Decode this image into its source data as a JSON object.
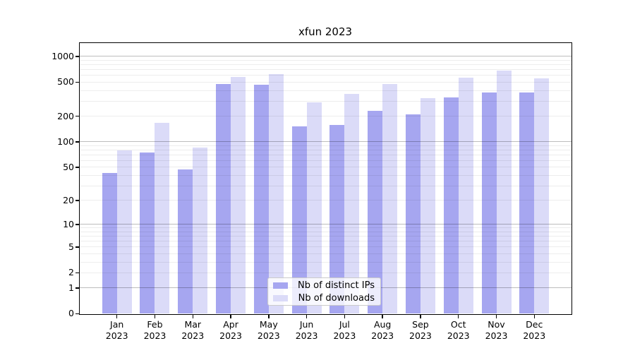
{
  "chart_data": {
    "type": "bar",
    "title": "xfun 2023",
    "categories": [
      "Jan",
      "Feb",
      "Mar",
      "Apr",
      "May",
      "Jun",
      "Jul",
      "Aug",
      "Sep",
      "Oct",
      "Nov",
      "Dec"
    ],
    "category_year_suffix": "2023",
    "series": [
      {
        "name": "Nb of distinct IPs",
        "color": "#a6a6f0",
        "values": [
          43,
          75,
          47,
          480,
          465,
          153,
          157,
          232,
          210,
          333,
          380,
          378
        ]
      },
      {
        "name": "Nb of downloads",
        "color": "#dbdbf8",
        "values": [
          80,
          168,
          85,
          575,
          620,
          288,
          365,
          477,
          325,
          565,
          685,
          556
        ]
      }
    ],
    "xlabel": "",
    "ylabel": "",
    "yscale": "log1p-base10",
    "y_ticks": [
      0,
      1,
      2,
      5,
      10,
      20,
      50,
      100,
      200,
      500,
      1000
    ],
    "ylim": [
      0,
      1450
    ],
    "grid_major_values": [
      1,
      10,
      100,
      1000
    ],
    "grid_minor": "2-9 multiples of each decade",
    "legend_position": "lower center inside plot",
    "colors": {
      "background": "#ffffff",
      "spine": "#000000",
      "grid_major": "rgba(0,0,0,0.26)",
      "grid_minor": "rgba(0,0,0,0.07)",
      "tick_label": "#000000"
    }
  }
}
